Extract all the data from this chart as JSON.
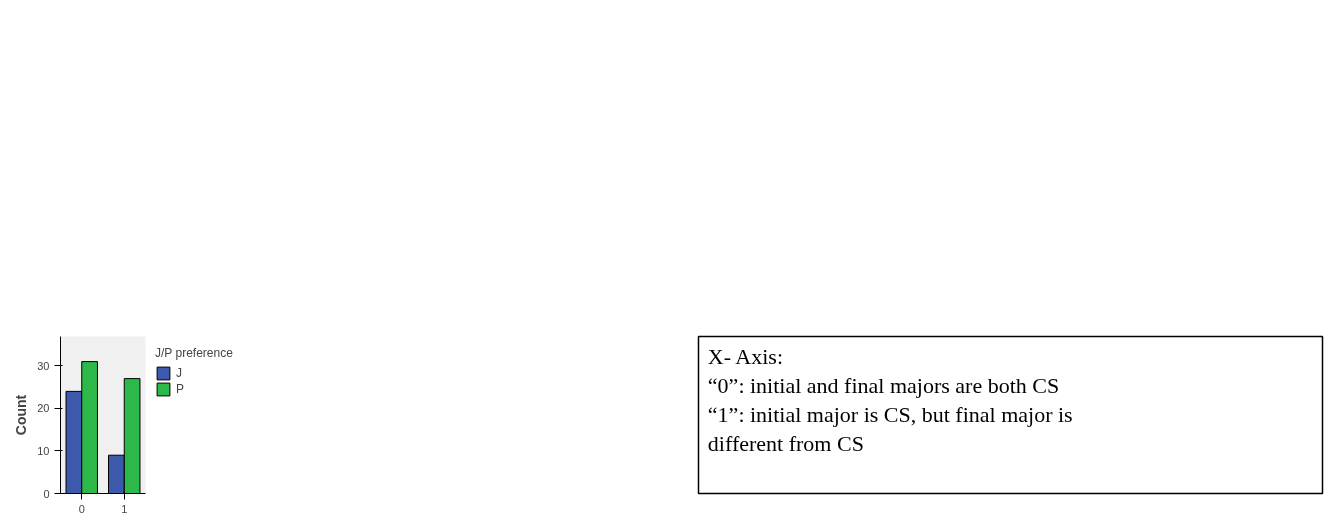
{
  "chart_data": {
    "type": "bar",
    "ylabel": "Count",
    "categories": [
      "0",
      "1"
    ],
    "series": [
      {
        "name": "J",
        "color": "#3d59ab",
        "values": [
          24,
          9
        ]
      },
      {
        "name": "P",
        "color": "#2db84a",
        "values": [
          31,
          27
        ]
      }
    ],
    "ylim": [
      0,
      36.9
    ],
    "yticks": [
      0,
      10,
      20,
      30
    ],
    "grid": false,
    "legend": "top right",
    "legend_title": "J/P preference",
    "annotations": [
      "X- Axis:",
      "“0”: initial and final majors are both CS",
      "“1”: initial major is CS, but final major is different from CS"
    ]
  }
}
